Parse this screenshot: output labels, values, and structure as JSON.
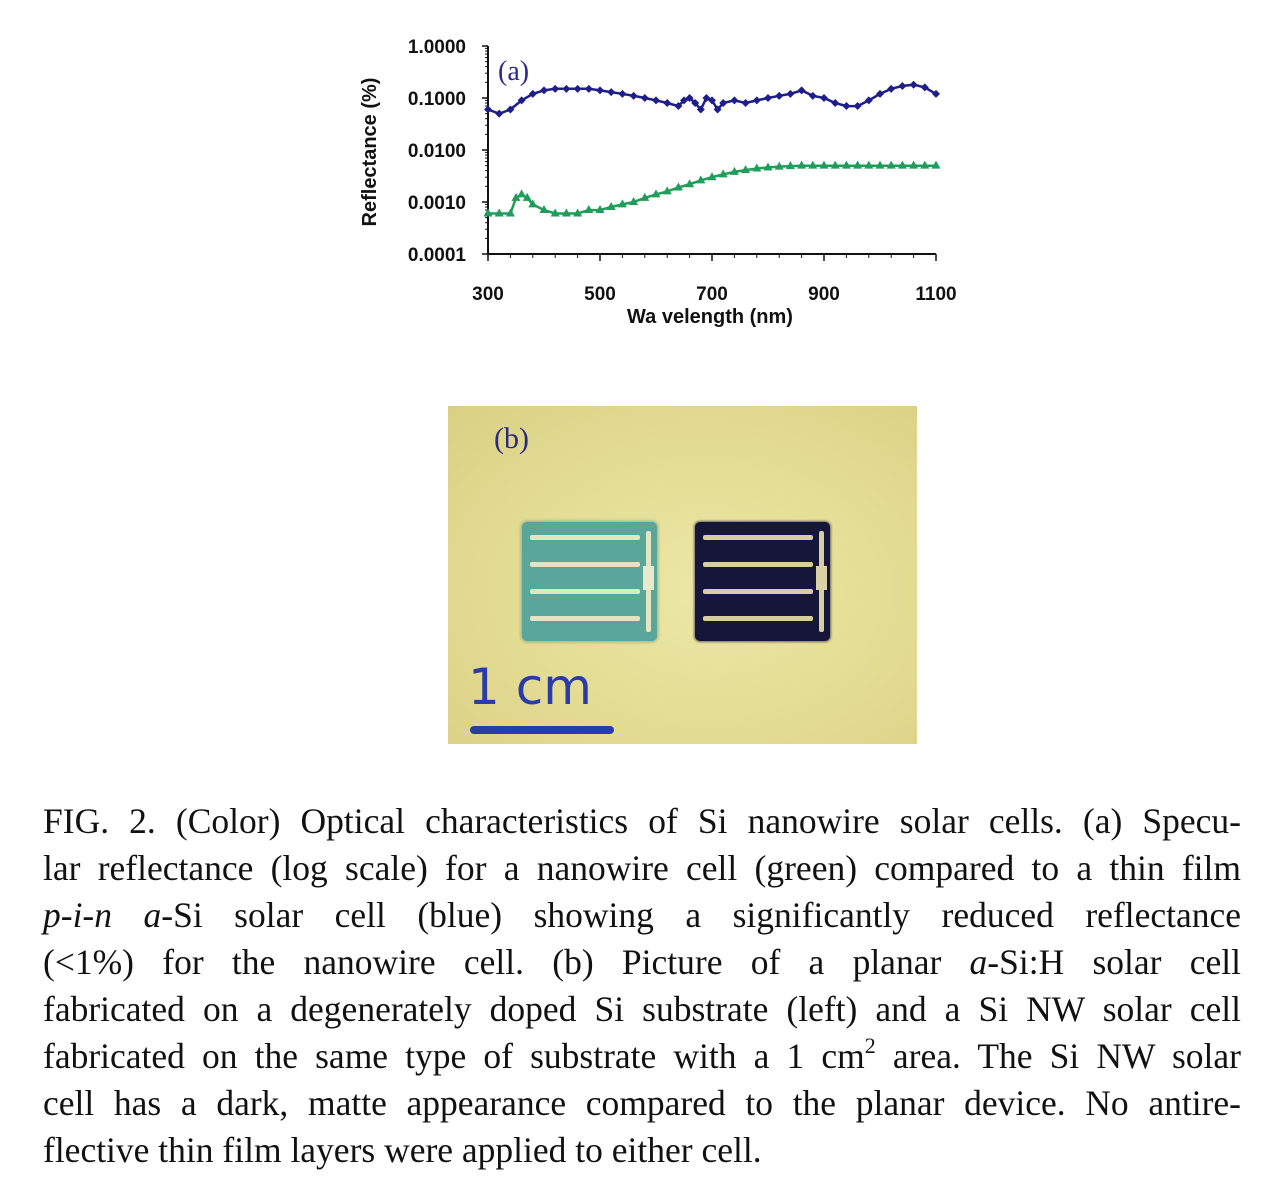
{
  "figure": {
    "panel_a_label": "(a)",
    "panel_b_label": "(b)",
    "scale_bar_label": "1 cm",
    "colors": {
      "blue_series": "#1e1e8a",
      "green_series": "#1f9d5a",
      "scale_bar": "#2b3ca8"
    }
  },
  "chart_data": {
    "type": "line",
    "xlabel": "Wa velength (nm)",
    "ylabel": "Reflectance (%)",
    "xlim": [
      300,
      1100
    ],
    "ylim": [
      0.0001,
      1.0
    ],
    "yscale": "log",
    "x_ticks": [
      "300",
      "500",
      "700",
      "900",
      "1100"
    ],
    "y_ticks": [
      "1.0000",
      "0.1000",
      "0.0100",
      "0.0010",
      "0.0001"
    ],
    "grid": false,
    "series": [
      {
        "color": "#1e1e8a",
        "marker": "diamond",
        "x": [
          300,
          320,
          340,
          360,
          380,
          400,
          420,
          440,
          460,
          480,
          500,
          520,
          540,
          560,
          580,
          600,
          620,
          640,
          650,
          660,
          670,
          680,
          690,
          700,
          710,
          720,
          740,
          760,
          780,
          800,
          820,
          840,
          860,
          880,
          900,
          920,
          940,
          960,
          980,
          1000,
          1020,
          1040,
          1060,
          1080,
          1100
        ],
        "y": [
          0.06,
          0.05,
          0.06,
          0.09,
          0.12,
          0.14,
          0.15,
          0.15,
          0.15,
          0.15,
          0.14,
          0.13,
          0.12,
          0.11,
          0.1,
          0.09,
          0.08,
          0.07,
          0.09,
          0.1,
          0.08,
          0.06,
          0.1,
          0.09,
          0.06,
          0.08,
          0.09,
          0.08,
          0.09,
          0.1,
          0.11,
          0.12,
          0.14,
          0.11,
          0.1,
          0.08,
          0.07,
          0.07,
          0.09,
          0.12,
          0.15,
          0.17,
          0.18,
          0.16,
          0.12
        ]
      },
      {
        "color": "#1f9d5a",
        "marker": "triangle",
        "x": [
          300,
          320,
          340,
          350,
          360,
          370,
          380,
          400,
          420,
          440,
          460,
          480,
          500,
          520,
          540,
          560,
          580,
          600,
          620,
          640,
          660,
          680,
          700,
          720,
          740,
          760,
          780,
          800,
          820,
          840,
          860,
          880,
          900,
          920,
          940,
          960,
          980,
          1000,
          1020,
          1040,
          1060,
          1080,
          1100
        ],
        "y": [
          0.0006,
          0.0006,
          0.0006,
          0.0012,
          0.0014,
          0.0012,
          0.0009,
          0.0007,
          0.0006,
          0.0006,
          0.0006,
          0.0007,
          0.0007,
          0.0008,
          0.0009,
          0.001,
          0.0012,
          0.0014,
          0.0016,
          0.0019,
          0.0022,
          0.0026,
          0.003,
          0.0034,
          0.0038,
          0.0041,
          0.0044,
          0.0046,
          0.0048,
          0.0049,
          0.005,
          0.005,
          0.005,
          0.005,
          0.005,
          0.005,
          0.005,
          0.005,
          0.005,
          0.005,
          0.005,
          0.005,
          0.005
        ]
      }
    ]
  },
  "caption": {
    "lines": [
      "FIG. 2. (Color) Optical characteristics of Si nanowire solar cells. (a) Specu-",
      "lar reflectance (log scale) for a nanowire cell (green) compared to a thin film",
      "{p-i-n} {a}-Si solar cell (blue) showing a significantly reduced reflectance",
      "(<1%) for the nanowire cell. (b) Picture of a planar {a}-Si:H solar cell",
      "fabricated on a degenerately doped Si substrate (left) and a Si NW solar cell",
      "fabricated on the same type of substrate with a 1 cm^2 area. The Si NW solar",
      "cell has a dark, matte appearance compared to the planar device. No antire-",
      "flective thin film layers were applied to either cell."
    ]
  }
}
